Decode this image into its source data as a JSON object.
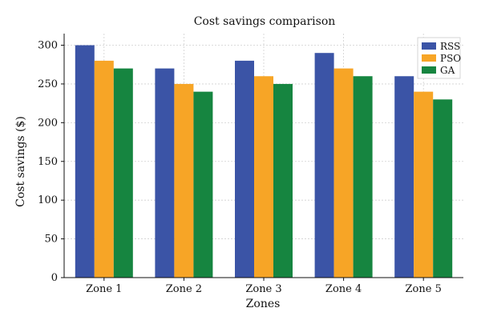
{
  "chart_data": {
    "type": "bar",
    "title": "Cost savings comparison",
    "xlabel": "Zones",
    "ylabel": "Cost savings ($)",
    "categories": [
      "Zone 1",
      "Zone 2",
      "Zone 3",
      "Zone 4",
      "Zone 5"
    ],
    "series": [
      {
        "name": "RSS",
        "values": [
          300,
          270,
          280,
          290,
          260
        ],
        "color": "#3b54a6"
      },
      {
        "name": "PSO",
        "values": [
          280,
          250,
          260,
          270,
          240
        ],
        "color": "#f7a526"
      },
      {
        "name": "GA",
        "values": [
          270,
          240,
          250,
          260,
          230
        ],
        "color": "#168540"
      }
    ],
    "ylim": [
      0,
      300
    ],
    "yticks": [
      0,
      50,
      100,
      150,
      200,
      250,
      300
    ],
    "grid": true,
    "legend_position": "top-right"
  }
}
